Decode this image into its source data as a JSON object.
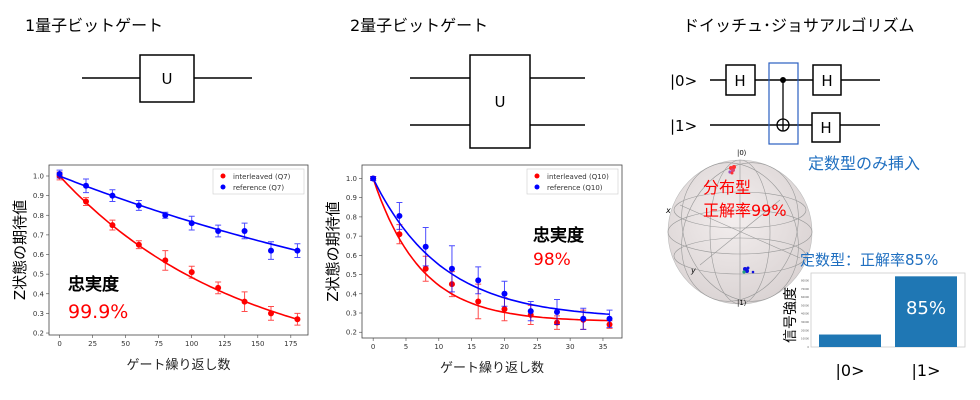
{
  "panels": {
    "single_qubit": {
      "title": "1量子ビットゲート",
      "gate_label": "U"
    },
    "two_qubit": {
      "title": "2量子ビットゲート",
      "gate_label": "U"
    },
    "deutsch_jozsa": {
      "title": "ドイッチュ･ジョサアルゴリズム",
      "kets": [
        "|0>",
        "|1>"
      ],
      "gate_label": "H",
      "note": "定数型のみ挿入",
      "bloch": {
        "label_top": "|0⟩",
        "label_bottom": "|1⟩",
        "axis_x": "x",
        "axis_y": "y",
        "annotation_line1": "分布型",
        "annotation_line2": "正解率99%"
      },
      "accent": "#1f6fc0"
    }
  },
  "chart_data": [
    {
      "type": "scatter",
      "xlabel": "ゲート繰り返し数",
      "ylabel": "Z状態の期待値",
      "xlim": [
        -8,
        188
      ],
      "ylim": [
        0.19,
        1.056
      ],
      "xticks": [
        0,
        25,
        50,
        75,
        100,
        125,
        150,
        175
      ],
      "yticks": [
        0.2,
        0.3,
        0.4,
        0.5,
        0.6,
        0.7,
        0.8,
        0.9,
        1.0
      ],
      "legend_position": "top-right",
      "annotation": {
        "label": "忠実度",
        "value": "99.9%"
      },
      "x": [
        0,
        20,
        40,
        60,
        80,
        100,
        120,
        140,
        160,
        180
      ],
      "series": [
        {
          "name": "interleaved (Q7)",
          "color": "#ff0000",
          "values": [
            1.0,
            0.87,
            0.75,
            0.65,
            0.57,
            0.51,
            0.43,
            0.36,
            0.3,
            0.27
          ],
          "errors": [
            0.02,
            0.02,
            0.025,
            0.02,
            0.05,
            0.03,
            0.03,
            0.05,
            0.035,
            0.03
          ]
        },
        {
          "name": "reference (Q7)",
          "color": "#0000ff",
          "values": [
            1.01,
            0.95,
            0.9,
            0.85,
            0.8,
            0.76,
            0.72,
            0.72,
            0.62,
            0.62
          ],
          "errors": [
            0.02,
            0.035,
            0.03,
            0.025,
            0.015,
            0.035,
            0.03,
            0.04,
            0.045,
            0.035
          ]
        }
      ]
    },
    {
      "type": "scatter",
      "xlabel": "ゲート繰り返し数",
      "ylabel": "Z状態の期待値",
      "xlim": [
        -1.7,
        37.9
      ],
      "ylim": [
        0.17,
        1.07
      ],
      "xticks": [
        0,
        5,
        10,
        15,
        20,
        25,
        30,
        35
      ],
      "yticks": [
        0.2,
        0.3,
        0.4,
        0.5,
        0.6,
        0.7,
        0.8,
        0.9,
        1.0
      ],
      "legend_position": "top-right",
      "annotation": {
        "label": "忠実度",
        "value": "98%"
      },
      "x": [
        0,
        4,
        8,
        12,
        16,
        20,
        24,
        28,
        32,
        36
      ],
      "series": [
        {
          "name": "interleaved (Q10)",
          "color": "#ff0000",
          "values": [
            1.0,
            0.71,
            0.53,
            0.45,
            0.36,
            0.32,
            0.29,
            0.25,
            0.265,
            0.24
          ],
          "errors": [
            0.01,
            0.05,
            0.065,
            0.065,
            0.09,
            0.06,
            0.05,
            0.035,
            0.05,
            0.02
          ]
        },
        {
          "name": "reference (Q10)",
          "color": "#0000ff",
          "values": [
            1.0,
            0.805,
            0.645,
            0.53,
            0.47,
            0.4,
            0.31,
            0.305,
            0.27,
            0.27
          ],
          "errors": [
            0.01,
            0.07,
            0.1,
            0.12,
            0.07,
            0.065,
            0.05,
            0.065,
            0.055,
            0.045
          ]
        }
      ]
    },
    {
      "type": "bar",
      "title": "定数型：正解率85%",
      "ylabel": "信号強度",
      "categories": [
        "|0>",
        "|1>"
      ],
      "values": [
        15000,
        85000
      ],
      "data_label": "85%",
      "ylim": [
        0,
        89000
      ],
      "yticks": [
        0,
        10000,
        20000,
        30000,
        40000,
        50000,
        60000,
        70000,
        80000
      ],
      "color": "#1f77b4"
    }
  ]
}
